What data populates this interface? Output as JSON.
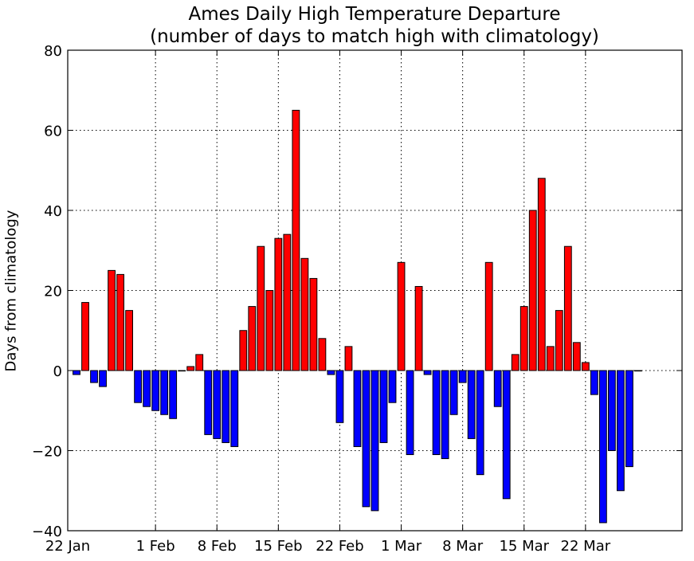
{
  "chart_data": {
    "type": "bar",
    "title": "Ames Daily High Temperature Departure",
    "subtitle": "(number of days to match high with climatology)",
    "xlabel": "",
    "ylabel": "Days from climatology",
    "ylim": [
      -40,
      80
    ],
    "yticks": [
      {
        "value": -40,
        "label": "−40"
      },
      {
        "value": -20,
        "label": "−20"
      },
      {
        "value": 0,
        "label": "0"
      },
      {
        "value": 20,
        "label": "20"
      },
      {
        "value": 40,
        "label": "40"
      },
      {
        "value": 60,
        "label": "60"
      },
      {
        "value": 80,
        "label": "80"
      }
    ],
    "xticks": [
      {
        "date": "2013-01-22",
        "label": "22 Jan"
      },
      {
        "date": "2013-02-01",
        "label": "1 Feb"
      },
      {
        "date": "2013-02-08",
        "label": "8 Feb"
      },
      {
        "date": "2013-02-15",
        "label": "15 Feb"
      },
      {
        "date": "2013-02-22",
        "label": "22 Feb"
      },
      {
        "date": "2013-03-01",
        "label": "1 Mar"
      },
      {
        "date": "2013-03-08",
        "label": "8 Mar"
      },
      {
        "date": "2013-03-15",
        "label": "15 Mar"
      },
      {
        "date": "2013-03-22",
        "label": "22 Mar"
      }
    ],
    "xlim": [
      "2013-01-22",
      "2013-04-02"
    ],
    "grid": true,
    "positive_color": "#ff0000",
    "negative_color": "#0000ff",
    "edge_color": "#000000",
    "dates": [
      "2013-01-23",
      "2013-01-24",
      "2013-01-25",
      "2013-01-26",
      "2013-01-27",
      "2013-01-28",
      "2013-01-29",
      "2013-01-30",
      "2013-01-31",
      "2013-02-01",
      "2013-02-02",
      "2013-02-03",
      "2013-02-04",
      "2013-02-05",
      "2013-02-06",
      "2013-02-07",
      "2013-02-08",
      "2013-02-09",
      "2013-02-10",
      "2013-02-11",
      "2013-02-12",
      "2013-02-13",
      "2013-02-14",
      "2013-02-15",
      "2013-02-16",
      "2013-02-17",
      "2013-02-18",
      "2013-02-19",
      "2013-02-20",
      "2013-02-21",
      "2013-02-22",
      "2013-02-23",
      "2013-02-24",
      "2013-02-25",
      "2013-02-26",
      "2013-02-27",
      "2013-02-28",
      "2013-03-01",
      "2013-03-02",
      "2013-03-03",
      "2013-03-04",
      "2013-03-05",
      "2013-03-06",
      "2013-03-07",
      "2013-03-08",
      "2013-03-09",
      "2013-03-10",
      "2013-03-11",
      "2013-03-12",
      "2013-03-13",
      "2013-03-14",
      "2013-03-15",
      "2013-03-16",
      "2013-03-17",
      "2013-03-18",
      "2013-03-19",
      "2013-03-20",
      "2013-03-21",
      "2013-03-22",
      "2013-03-23",
      "2013-03-24",
      "2013-03-25",
      "2013-03-26",
      "2013-03-27",
      "2013-03-28"
    ],
    "values": [
      -1,
      17,
      -3,
      -4,
      25,
      24,
      15,
      -8,
      -9,
      -10,
      -11,
      -12,
      0,
      1,
      4,
      -16,
      -17,
      -18,
      -19,
      10,
      16,
      31,
      20,
      33,
      34,
      65,
      28,
      23,
      8,
      -1,
      -13,
      6,
      -19,
      -34,
      -35,
      -18,
      -8,
      27,
      -21,
      21,
      -1,
      -21,
      -22,
      -11,
      -3,
      -17,
      -26,
      27,
      -9,
      -32,
      4,
      16,
      40,
      48,
      6,
      15,
      31,
      7,
      2,
      -6,
      -38,
      -20,
      -30,
      -24,
      0
    ]
  }
}
